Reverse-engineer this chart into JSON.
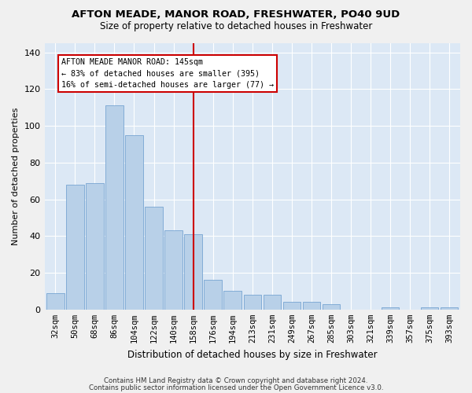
{
  "title": "AFTON MEADE, MANOR ROAD, FRESHWATER, PO40 9UD",
  "subtitle": "Size of property relative to detached houses in Freshwater",
  "xlabel": "Distribution of detached houses by size in Freshwater",
  "ylabel": "Number of detached properties",
  "categories": [
    "32sqm",
    "50sqm",
    "68sqm",
    "86sqm",
    "104sqm",
    "122sqm",
    "140sqm",
    "158sqm",
    "176sqm",
    "194sqm",
    "213sqm",
    "231sqm",
    "249sqm",
    "267sqm",
    "285sqm",
    "303sqm",
    "321sqm",
    "339sqm",
    "357sqm",
    "375sqm",
    "393sqm"
  ],
  "values": [
    9,
    68,
    69,
    111,
    95,
    56,
    43,
    41,
    16,
    10,
    8,
    8,
    4,
    4,
    3,
    0,
    0,
    1,
    0,
    1,
    1
  ],
  "bar_color": "#b8d0e8",
  "bar_edgecolor": "#6699cc",
  "background_color": "#dce8f5",
  "grid_color": "#ffffff",
  "vline_x": 7.0,
  "vline_color": "#cc0000",
  "annotation_text": "AFTON MEADE MANOR ROAD: 145sqm\n← 83% of detached houses are smaller (395)\n16% of semi-detached houses are larger (77) →",
  "annotation_box_edgecolor": "#cc0000",
  "ylim": [
    0,
    145
  ],
  "yticks": [
    0,
    20,
    40,
    60,
    80,
    100,
    120,
    140
  ],
  "footer_line1": "Contains HM Land Registry data © Crown copyright and database right 2024.",
  "footer_line2": "Contains public sector information licensed under the Open Government Licence v3.0.",
  "fig_width": 6.0,
  "fig_height": 5.0,
  "title_fontsize": 9.5,
  "subtitle_fontsize": 8.5,
  "bar_width": 0.9
}
